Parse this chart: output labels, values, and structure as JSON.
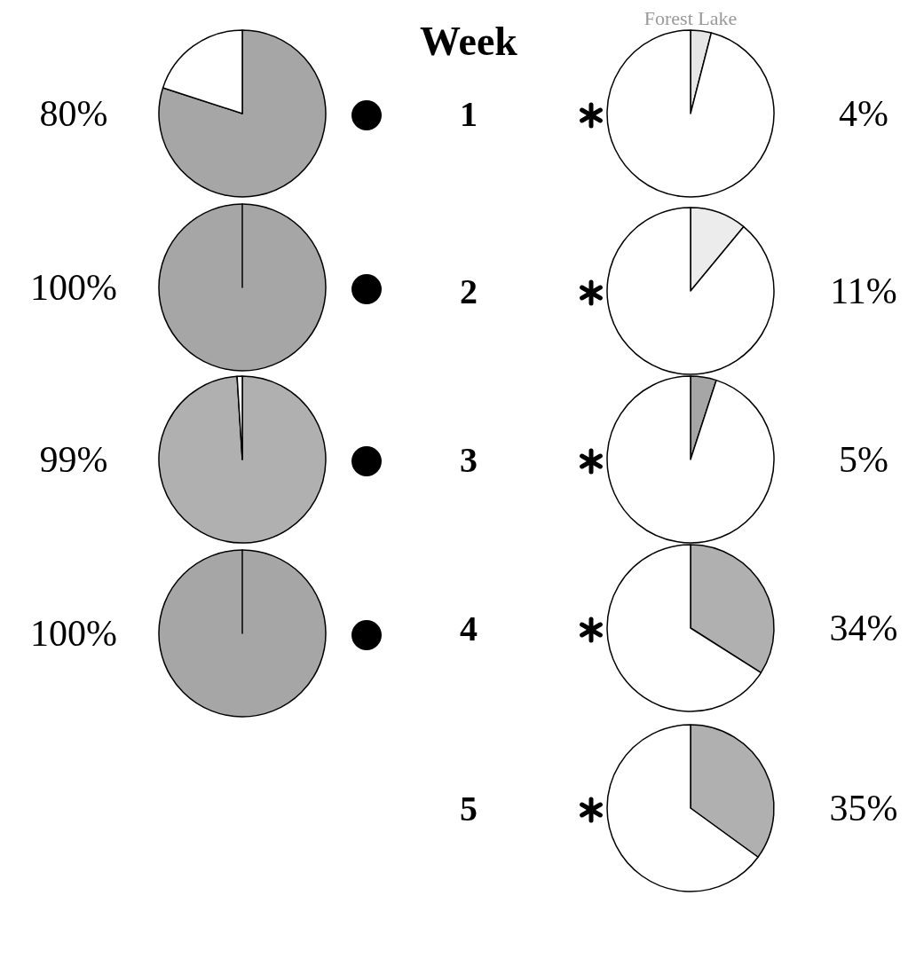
{
  "chart_data": [
    {
      "type": "pie",
      "annotations": [
        "80%"
      ],
      "categories": [
        null,
        null
      ],
      "values": [
        80,
        20
      ],
      "colors": [
        "#a6a6a6",
        "#ffffff"
      ]
    },
    {
      "type": "pie",
      "title": "Forest Lake",
      "annotations": [
        "Week",
        "1",
        "4%"
      ],
      "categories": [
        null,
        null
      ],
      "values": [
        4,
        96
      ],
      "colors": [
        "#e6e6e6",
        "#ffffff"
      ]
    },
    {
      "type": "pie",
      "annotations": [
        "100%"
      ],
      "categories": [
        null,
        null
      ],
      "values": [
        100,
        0
      ],
      "colors": [
        "#a6a6a6",
        "#ffffff"
      ]
    },
    {
      "type": "pie",
      "annotations": [
        "2",
        "11%"
      ],
      "categories": [
        null,
        null
      ],
      "values": [
        11,
        89
      ],
      "colors": [
        "#ececec",
        "#ffffff"
      ]
    },
    {
      "type": "pie",
      "annotations": [
        "99%"
      ],
      "categories": [
        null,
        null
      ],
      "values": [
        99,
        1
      ],
      "colors": [
        "#b0b0b0",
        "#ffffff"
      ]
    },
    {
      "type": "pie",
      "annotations": [
        "3",
        "5%"
      ],
      "categories": [
        null,
        null
      ],
      "values": [
        5,
        95
      ],
      "colors": [
        "#a6a6a6",
        "#ffffff"
      ]
    },
    {
      "type": "pie",
      "annotations": [
        "100%"
      ],
      "categories": [
        null,
        null
      ],
      "values": [
        100,
        0
      ],
      "colors": [
        "#a6a6a6",
        "#ffffff"
      ]
    },
    {
      "type": "pie",
      "annotations": [
        "4",
        "34%"
      ],
      "categories": [
        null,
        null
      ],
      "values": [
        34,
        66
      ],
      "colors": [
        "#b0b0b0",
        "#ffffff"
      ]
    },
    {
      "type": "pie",
      "annotations": [
        "5",
        "35%"
      ],
      "categories": [
        null,
        null
      ],
      "values": [
        35,
        65
      ],
      "colors": [
        "#b0b0b0",
        "#ffffff"
      ]
    }
  ]
}
